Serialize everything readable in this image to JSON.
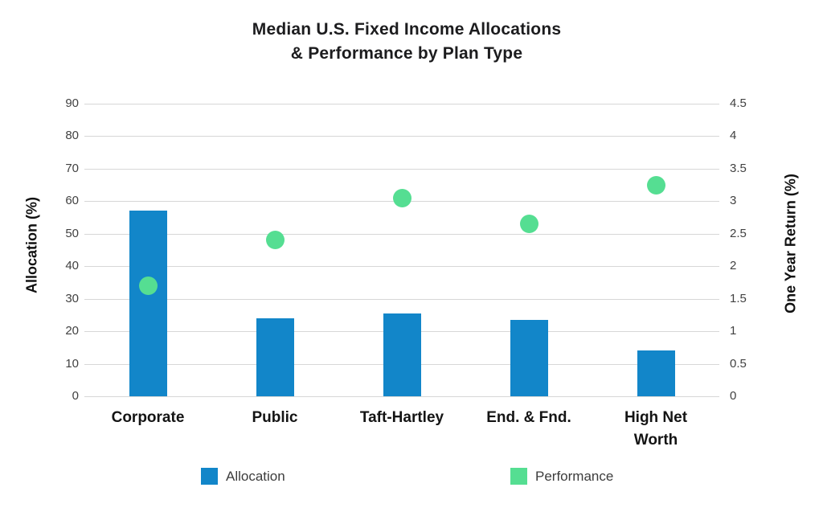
{
  "title": {
    "line1": "Median U.S. Fixed Income Allocations",
    "line2": "& Performance by Plan Type"
  },
  "chart_data": {
    "type": "combo-bar-scatter",
    "title": "Median U.S. Fixed Income Allocations & Performance by Plan Type",
    "categories": [
      "Corporate",
      "Public",
      "Taft-Hartley",
      "End. & Fnd.",
      "High Net\nWorth"
    ],
    "series": [
      {
        "name": "Allocation",
        "type": "bar",
        "axis": "left",
        "color": "#1286C9",
        "values": [
          57,
          24,
          25.5,
          23.5,
          14
        ]
      },
      {
        "name": "Performance",
        "type": "scatter",
        "axis": "right",
        "color": "#55DE92",
        "values": [
          1.7,
          2.4,
          3.05,
          2.65,
          3.25
        ]
      }
    ],
    "left_axis": {
      "label": "Allocation (%)",
      "min": 0,
      "max": 90,
      "step": 10,
      "ticks": [
        "0",
        "10",
        "20",
        "30",
        "40",
        "50",
        "60",
        "70",
        "80",
        "90"
      ]
    },
    "right_axis": {
      "label": "One Year Return (%)",
      "min": 0,
      "max": 4.5,
      "step": 0.5,
      "ticks": [
        "0",
        "0.5",
        "1",
        "1.5",
        "2",
        "2.5",
        "3",
        "3.5",
        "4",
        "4.5"
      ]
    },
    "grid": true,
    "legend_position": "bottom"
  },
  "legend": [
    {
      "label": "Allocation",
      "color": "#1286C9"
    },
    {
      "label": "Performance",
      "color": "#55DE92"
    }
  ],
  "colors": {
    "bar_blue": "#1286C9",
    "dot_green": "#55DE92",
    "gridline": "#d7d7d7",
    "tick_text": "#414141",
    "title_text": "#1c1c1e"
  }
}
